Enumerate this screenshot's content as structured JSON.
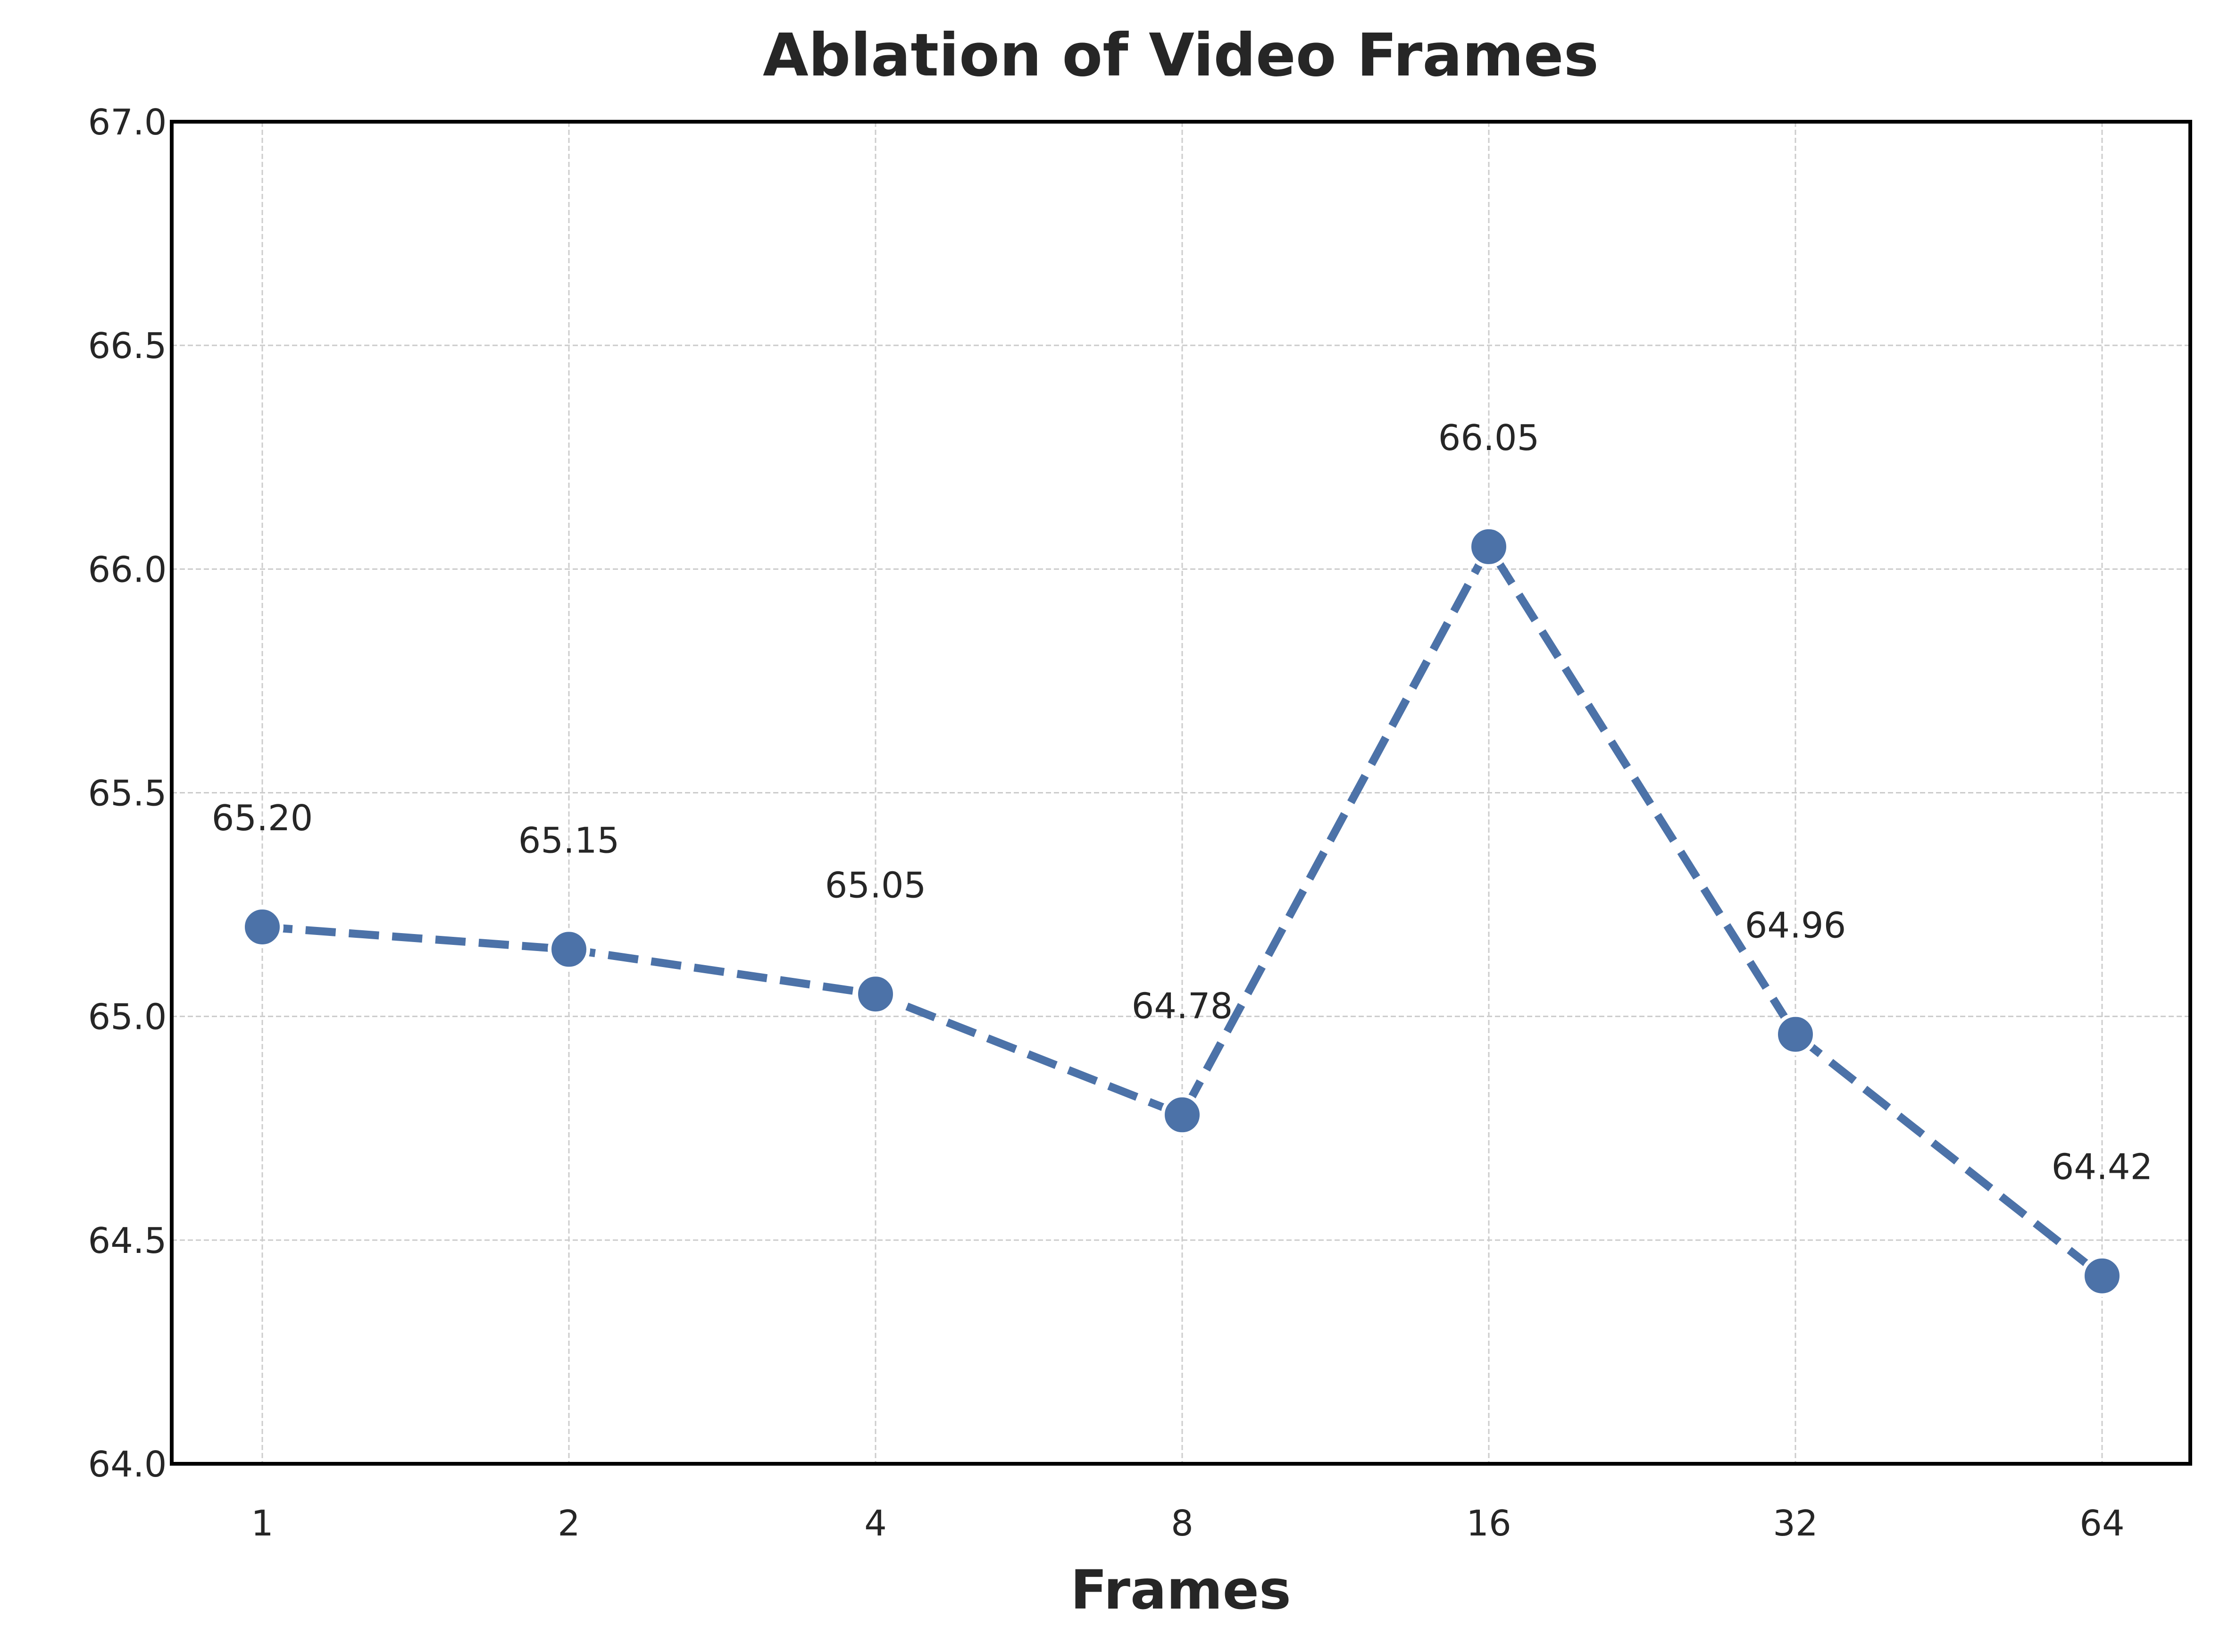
{
  "chart_data": {
    "type": "line",
    "title": "Ablation of Video Frames",
    "xlabel": "Frames",
    "ylabel": "",
    "categories": [
      "1",
      "2",
      "4",
      "8",
      "16",
      "32",
      "64"
    ],
    "series": [
      {
        "values": [
          65.2,
          65.15,
          65.05,
          64.78,
          66.05,
          64.96,
          64.42
        ],
        "labels": [
          "65.20",
          "65.15",
          "65.05",
          "64.78",
          "66.05",
          "64.96",
          "64.42"
        ],
        "color": "#4c72a8",
        "line_style": "dashed",
        "marker": "circle"
      }
    ],
    "ylim": [
      64.0,
      67.0
    ],
    "yticks": [
      64.0,
      64.5,
      65.0,
      65.5,
      66.0,
      66.5,
      67.0
    ],
    "ytick_labels": [
      "64.0",
      "64.5",
      "65.0",
      "65.5",
      "66.0",
      "66.5",
      "67.0"
    ],
    "grid": true,
    "grid_style": "dashed",
    "legend": "none"
  }
}
